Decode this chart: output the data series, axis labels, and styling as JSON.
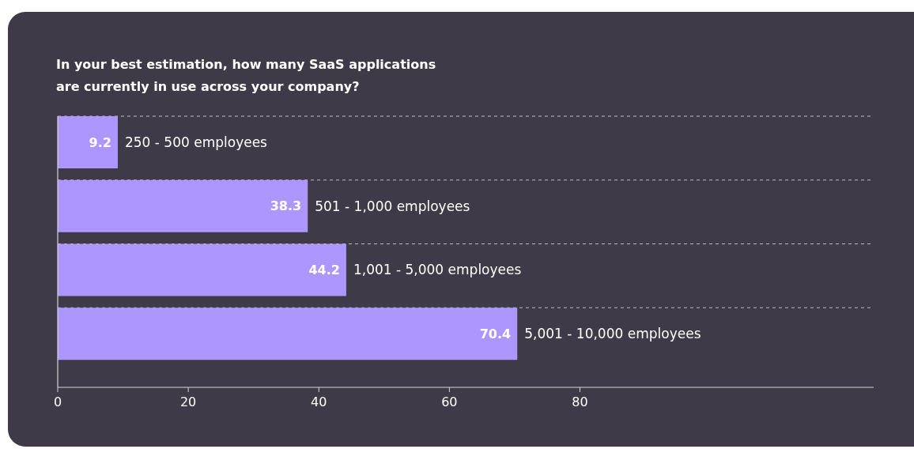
{
  "chart_data": {
    "type": "bar",
    "orientation": "horizontal",
    "title": "In your best estimation, how many SaaS applications\nare currently in use across your company?",
    "categories": [
      "250 - 500 employees",
      "501 - 1,000 employees",
      "1,001 - 5,000 employees",
      "5,001 - 10,000 employees"
    ],
    "values": [
      9.2,
      38.3,
      44.2,
      70.4
    ],
    "color": "#ab97ff",
    "data_labels": true,
    "xlim": [
      0,
      125
    ],
    "xticks": [
      0,
      20,
      40,
      60,
      80
    ],
    "grid": "y"
  }
}
